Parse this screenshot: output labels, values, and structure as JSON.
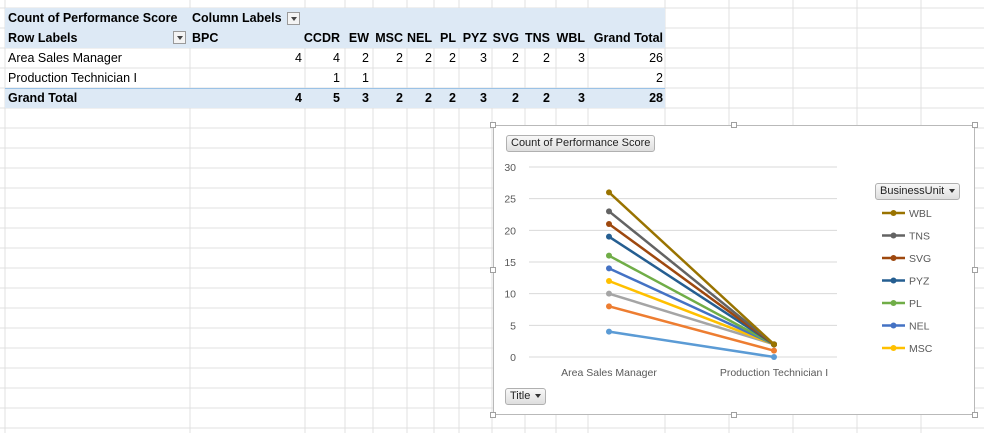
{
  "pivot": {
    "values_field": "Count of Performance Score",
    "column_labels": "Column Labels",
    "row_labels": "Row Labels",
    "columns": [
      "BPC",
      "CCDR",
      "EW",
      "MSC",
      "NEL",
      "PL",
      "PYZ",
      "SVG",
      "TNS",
      "WBL",
      "Grand Total"
    ],
    "rows": [
      {
        "label": "Area Sales Manager",
        "values": [
          "4",
          "4",
          "2",
          "2",
          "2",
          "2",
          "3",
          "2",
          "2",
          "3",
          "26"
        ]
      },
      {
        "label": "Production Technician I",
        "values": [
          "",
          "1",
          "1",
          "",
          "",
          "",
          "",
          "",
          "",
          "",
          "2"
        ]
      }
    ],
    "grand_total": {
      "label": "Grand Total",
      "values": [
        "4",
        "5",
        "3",
        "2",
        "2",
        "2",
        "3",
        "2",
        "2",
        "3",
        "28"
      ]
    }
  },
  "chart_data": {
    "type": "line",
    "title": "",
    "value_field_button": "Count of Performance Score",
    "legend_field_button": "BusinessUnit",
    "axis_field_button": "Title",
    "categories": [
      "Area Sales Manager",
      "Production Technician I"
    ],
    "ylim": [
      0,
      30
    ],
    "yticks": [
      "30",
      "25",
      "20",
      "15",
      "10",
      "5",
      "0"
    ],
    "grid": true,
    "stacked": true,
    "legend_position": "right",
    "series": [
      {
        "name": "BPC",
        "values": [
          4,
          0
        ],
        "color": "#5b9bd5"
      },
      {
        "name": "CCDR",
        "values": [
          4,
          1
        ],
        "color": "#ed7d31"
      },
      {
        "name": "EW",
        "values": [
          2,
          1
        ],
        "color": "#a5a5a5"
      },
      {
        "name": "MSC",
        "values": [
          2,
          0
        ],
        "color": "#ffc000"
      },
      {
        "name": "NEL",
        "values": [
          2,
          0
        ],
        "color": "#4472c4"
      },
      {
        "name": "PL",
        "values": [
          2,
          0
        ],
        "color": "#70ad47"
      },
      {
        "name": "PYZ",
        "values": [
          3,
          0
        ],
        "color": "#255e91"
      },
      {
        "name": "SVG",
        "values": [
          2,
          0
        ],
        "color": "#9e480e"
      },
      {
        "name": "TNS",
        "values": [
          2,
          0
        ],
        "color": "#636363"
      },
      {
        "name": "WBL",
        "values": [
          3,
          0
        ],
        "color": "#997300"
      }
    ],
    "legend_entries": [
      "WBL",
      "TNS",
      "SVG",
      "PYZ",
      "PL",
      "NEL",
      "MSC"
    ]
  }
}
